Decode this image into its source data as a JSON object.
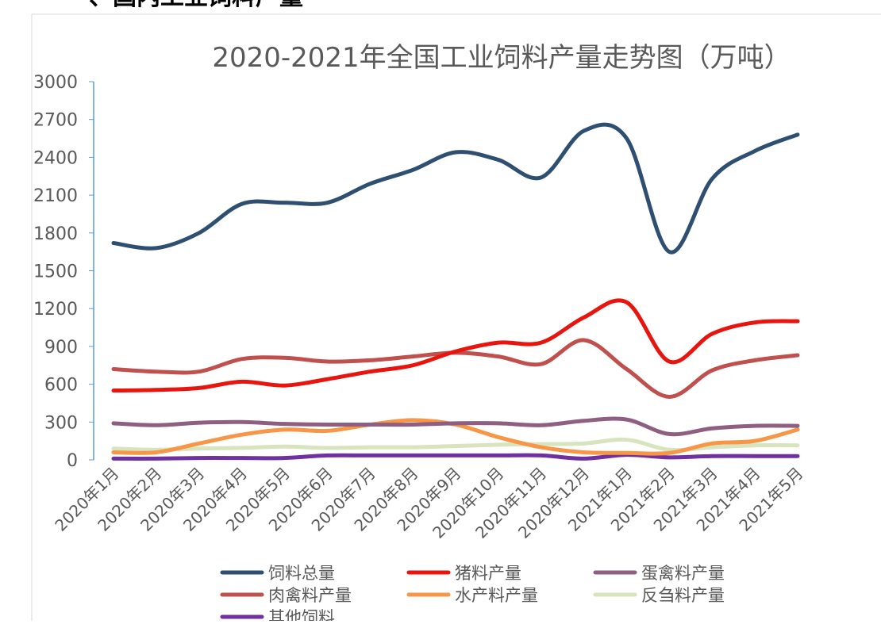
{
  "heading": "、国内工业饲料产量",
  "chart_data": {
    "type": "line",
    "title": "2020-2021年全国工业饲料产量走势图（万吨）",
    "categories": [
      "2020年1月",
      "2020年2月",
      "2020年3月",
      "2020年4月",
      "2020年5月",
      "2020年6月",
      "2020年7月",
      "2020年8月",
      "2020年9月",
      "2020年10月",
      "2020年11月",
      "2020年12月",
      "2021年1月",
      "2021年2月",
      "2021年3月",
      "2021年4月",
      "2021年5月"
    ],
    "series": [
      {
        "name": "饲料总量",
        "color": "#2e4f72",
        "values": [
          1720,
          1680,
          1800,
          2030,
          2040,
          2040,
          2190,
          2300,
          2440,
          2380,
          2240,
          2610,
          2550,
          1650,
          2230,
          2450,
          2580
        ]
      },
      {
        "name": "猪料产量",
        "color": "#e8140e",
        "values": [
          550,
          555,
          570,
          620,
          590,
          640,
          700,
          750,
          860,
          930,
          930,
          1130,
          1250,
          780,
          1000,
          1090,
          1100
        ]
      },
      {
        "name": "蛋禽料产量",
        "color": "#8e5f80",
        "values": [
          290,
          275,
          295,
          300,
          285,
          280,
          280,
          280,
          290,
          290,
          275,
          310,
          320,
          205,
          250,
          270,
          270
        ]
      },
      {
        "name": "肉禽料产量",
        "color": "#c0504d",
        "values": [
          720,
          700,
          700,
          800,
          810,
          780,
          790,
          820,
          850,
          820,
          760,
          950,
          720,
          500,
          710,
          790,
          830
        ]
      },
      {
        "name": "水产料产量",
        "color": "#f79646",
        "values": [
          60,
          60,
          130,
          200,
          240,
          230,
          280,
          315,
          280,
          180,
          100,
          60,
          55,
          55,
          130,
          150,
          240
        ]
      },
      {
        "name": "反刍料产量",
        "color": "#d7e4bd",
        "values": [
          90,
          80,
          90,
          95,
          105,
          95,
          100,
          100,
          110,
          120,
          125,
          130,
          160,
          80,
          100,
          115,
          115
        ]
      },
      {
        "name": "其他饲料",
        "color": "#7030a0",
        "values": [
          10,
          10,
          15,
          15,
          15,
          35,
          35,
          35,
          35,
          35,
          35,
          10,
          40,
          20,
          30,
          30,
          30
        ]
      }
    ],
    "ylim": [
      0,
      3000
    ],
    "yticks": [
      0,
      300,
      600,
      900,
      1200,
      1500,
      1800,
      2100,
      2400,
      2700,
      3000
    ],
    "grid": false,
    "legend": "bottom"
  }
}
